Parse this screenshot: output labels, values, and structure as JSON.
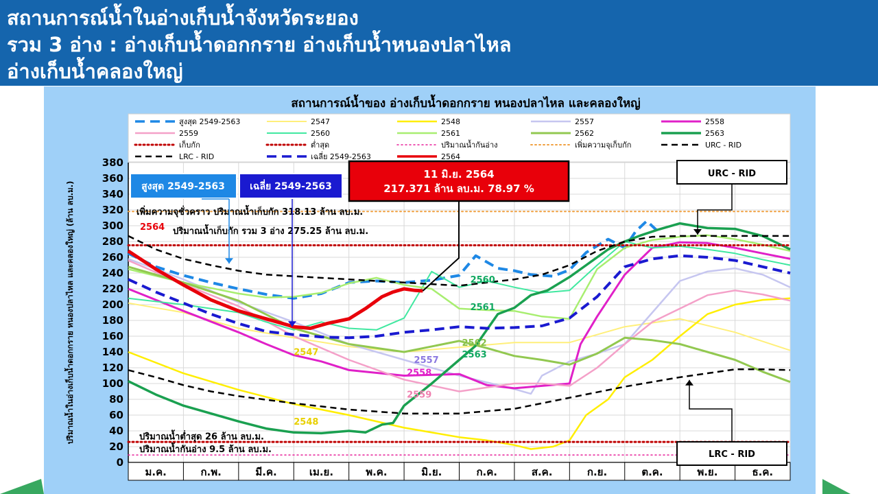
{
  "slide": {
    "title_line1": "สถานการณ์น้ำในอ่างเก็บน้ำจังหวัดระยอง",
    "title_line2": "รวม 3 อ่าง : อ่างเก็บน้ำดอกกราย อ่างเก็บน้ำหนองปลาไหล",
    "title_line3": "อ่างเก็บน้ำคลองใหญ่"
  },
  "colors": {
    "header_bg": "#1565ad",
    "panel_bg": "#9fd0f8",
    "plot_bg": "#ffffff",
    "accent_red": "#e8000a",
    "callout_blue": "#1e88e5",
    "callout_navy": "#1a1ad0"
  },
  "chart_data": {
    "type": "line",
    "title": "สถานการณ์น้ำของ อ่างเก็บน้ำดอกกราย หนองปลาไหล และคลองใหญ่",
    "ylabel": "ปริมาณน้ำในอ่างเก็บน้ำดอกกราย หนองปลาไหล และคลองใหญ่ (ล้าน ลบ.ม.)",
    "xlabel": "",
    "ylim": [
      0,
      380
    ],
    "yticks": [
      0,
      20,
      40,
      60,
      80,
      100,
      120,
      140,
      160,
      180,
      200,
      220,
      240,
      260,
      280,
      300,
      320,
      340,
      360,
      380
    ],
    "months": [
      "ม.ค.",
      "ก.พ.",
      "มี.ค.",
      "เม.ย.",
      "พ.ค.",
      "มิ.ย.",
      "ก.ค.",
      "ส.ค.",
      "ก.ย.",
      "ต.ค.",
      "พ.ย.",
      "ธ.ค."
    ],
    "grid": true,
    "legend_position": "top",
    "series": [
      {
        "name": "สูงสุด 2549-2563",
        "color": "#1e88e5",
        "dash": "long",
        "width": 4,
        "x": [
          0,
          0.5,
          1,
          1.5,
          2,
          2.5,
          3,
          3.5,
          4,
          4.5,
          5,
          5.5,
          6,
          6.3,
          6.7,
          7,
          7.3,
          7.7,
          8,
          8.3,
          8.7,
          9,
          9.2,
          9.4,
          9.6
        ],
        "y": [
          265,
          248,
          237,
          228,
          220,
          213,
          208,
          214,
          228,
          230,
          228,
          231,
          237,
          262,
          246,
          243,
          238,
          236,
          244,
          266,
          283,
          272,
          293,
          306,
          293
        ]
      },
      {
        "name": "2547",
        "color": "#ffef7a",
        "dash": "solid",
        "width": 2,
        "x": [
          0,
          1,
          2,
          3,
          4,
          5,
          6,
          7,
          8,
          9,
          10,
          11,
          12
        ],
        "y": [
          202,
          190,
          170,
          158,
          147,
          140,
          146,
          152,
          152,
          172,
          182,
          165,
          142
        ]
      },
      {
        "name": "2548",
        "color": "#ffee00",
        "dash": "solid",
        "width": 2.5,
        "x": [
          0,
          1,
          2,
          3,
          4,
          5,
          6,
          6.5,
          7,
          7.3,
          7.7,
          8,
          8.3,
          8.7,
          9,
          9.5,
          10,
          10.5,
          11,
          11.5,
          12
        ],
        "y": [
          140,
          113,
          92,
          74,
          60,
          44,
          32,
          28,
          22,
          17,
          20,
          28,
          60,
          80,
          108,
          130,
          160,
          188,
          200,
          206,
          208
        ]
      },
      {
        "name": "2557",
        "color": "#c6c6f0",
        "dash": "solid",
        "width": 2.5,
        "x": [
          0,
          1,
          2,
          3,
          4,
          5,
          6,
          7,
          7.3,
          7.5,
          8,
          8.5,
          9,
          9.5,
          10,
          10.5,
          11,
          11.5,
          12
        ],
        "y": [
          258,
          232,
          203,
          178,
          150,
          130,
          110,
          93,
          87,
          110,
          128,
          138,
          150,
          190,
          230,
          242,
          246,
          238,
          222
        ]
      },
      {
        "name": "2558",
        "color": "#e020c8",
        "dash": "solid",
        "width": 3,
        "x": [
          0,
          1,
          2,
          2.5,
          3,
          3.5,
          4,
          5,
          6,
          6.5,
          7,
          7.5,
          8,
          8.2,
          8.5,
          9,
          9.5,
          10,
          10.5,
          11,
          11.5,
          12
        ],
        "y": [
          220,
          192,
          165,
          150,
          136,
          128,
          117,
          110,
          112,
          98,
          94,
          97,
          100,
          150,
          185,
          238,
          272,
          279,
          278,
          272,
          265,
          258
        ]
      },
      {
        "name": "2559",
        "color": "#f4a0c8",
        "dash": "solid",
        "width": 2.5,
        "x": [
          0,
          1,
          2,
          3,
          4,
          5,
          6,
          7,
          7.5,
          8,
          8.5,
          9,
          9.5,
          10,
          10.5,
          11,
          11.5,
          12
        ],
        "y": [
          256,
          226,
          198,
          160,
          130,
          105,
          90,
          100,
          100,
          97,
          120,
          150,
          178,
          195,
          212,
          218,
          213,
          205
        ]
      },
      {
        "name": "2560",
        "color": "#40e8a0",
        "dash": "solid",
        "width": 2,
        "x": [
          0,
          1,
          2,
          2.5,
          3,
          3.5,
          4,
          4.5,
          5,
          5.5,
          6,
          6.5,
          7,
          7.5,
          8,
          8.5,
          9,
          9.5,
          10,
          10.5,
          11,
          11.5,
          12
        ],
        "y": [
          208,
          200,
          190,
          178,
          168,
          178,
          170,
          168,
          183,
          242,
          222,
          230,
          222,
          215,
          218,
          250,
          280,
          272,
          274,
          270,
          265,
          257,
          250
        ]
      },
      {
        "name": "2561",
        "color": "#a8ee70",
        "dash": "solid",
        "width": 2.5,
        "x": [
          0,
          1,
          2,
          2.5,
          3,
          3.5,
          4,
          4.5,
          5,
          5.5,
          6,
          6.5,
          7,
          7.5,
          8,
          8.5,
          9,
          9.5,
          10,
          10.5,
          11,
          11.5,
          12
        ],
        "y": [
          245,
          228,
          214,
          209,
          210,
          215,
          227,
          234,
          225,
          220,
          195,
          193,
          192,
          185,
          182,
          245,
          272,
          282,
          286,
          288,
          283,
          276,
          268
        ]
      },
      {
        "name": "2562",
        "color": "#92c850",
        "dash": "solid",
        "width": 3,
        "x": [
          0,
          1,
          2,
          3,
          4,
          5,
          6,
          6.5,
          7,
          7.5,
          8,
          8.5,
          9,
          9.5,
          10,
          10.5,
          11,
          11.5,
          12
        ],
        "y": [
          248,
          228,
          205,
          170,
          150,
          140,
          154,
          145,
          135,
          130,
          124,
          138,
          158,
          155,
          150,
          140,
          130,
          115,
          102
        ]
      },
      {
        "name": "2563",
        "color": "#1aa050",
        "dash": "solid",
        "width": 3.5,
        "x": [
          0,
          0.5,
          1,
          1.5,
          2,
          2.5,
          3,
          3.5,
          4,
          4.3,
          4.6,
          4.8,
          5,
          5.5,
          6,
          6.3,
          6.7,
          7,
          7.3,
          7.6,
          8,
          8.3,
          8.7,
          9,
          9.3,
          9.6,
          10,
          10.5,
          11,
          11.5,
          12
        ],
        "y": [
          103,
          86,
          72,
          62,
          52,
          43,
          38,
          37,
          40,
          38,
          48,
          50,
          72,
          100,
          130,
          148,
          188,
          196,
          212,
          218,
          235,
          250,
          270,
          280,
          288,
          295,
          303,
          297,
          296,
          287,
          270
        ]
      },
      {
        "name": "เก็บกัก",
        "color": "#c00000",
        "dash": "dot",
        "width": 3,
        "x": [
          0,
          12
        ],
        "y": [
          275.25,
          275.25
        ]
      },
      {
        "name": "ต่ำสุด",
        "color": "#c00000",
        "dash": "dot",
        "width": 3,
        "x": [
          0,
          12
        ],
        "y": [
          26,
          26
        ]
      },
      {
        "name": "ปริมาณน้ำกันอ่าง",
        "color": "#e8209a",
        "dash": "dot",
        "width": 1.5,
        "x": [
          0,
          12
        ],
        "y": [
          9.5,
          9.5
        ]
      },
      {
        "name": "เพิ่มความจุเก็บกัก",
        "color": "#f0a040",
        "dash": "dot",
        "width": 2,
        "x": [
          0,
          12
        ],
        "y": [
          318.13,
          318.13
        ]
      },
      {
        "name": "URC - RID",
        "color": "#000000",
        "dash": "dash",
        "width": 2.5,
        "x": [
          0,
          0.5,
          1,
          1.5,
          2,
          2.5,
          3,
          4,
          5,
          6,
          7,
          7.5,
          8,
          8.5,
          9,
          9.5,
          10,
          11,
          12
        ],
        "y": [
          287,
          270,
          258,
          250,
          243,
          238,
          236,
          232,
          228,
          224,
          232,
          238,
          250,
          268,
          280,
          286,
          287,
          287,
          287
        ]
      },
      {
        "name": "LRC - RID",
        "color": "#000000",
        "dash": "dash",
        "width": 2.5,
        "x": [
          0,
          0.5,
          1,
          1.5,
          2,
          3,
          4,
          5,
          6,
          7,
          8,
          9,
          10,
          11,
          11.5,
          12
        ],
        "y": [
          117,
          108,
          98,
          90,
          84,
          75,
          67,
          62,
          62,
          68,
          82,
          96,
          108,
          118,
          118,
          117
        ]
      },
      {
        "name": "เฉลี่ย 2549-2563",
        "color": "#1a1ad0",
        "dash": "long",
        "width": 4,
        "x": [
          0,
          0.5,
          1,
          1.5,
          2,
          2.5,
          3,
          3.5,
          4,
          4.5,
          5,
          5.5,
          6,
          6.5,
          7,
          7.5,
          8,
          8.5,
          9,
          9.5,
          10,
          10.5,
          11,
          11.5,
          12
        ],
        "y": [
          232,
          216,
          202,
          188,
          176,
          166,
          162,
          159,
          158,
          160,
          165,
          168,
          172,
          170,
          171,
          173,
          183,
          210,
          248,
          258,
          262,
          260,
          256,
          248,
          240
        ]
      },
      {
        "name": "2564",
        "color": "#e8000a",
        "dash": "solid",
        "width": 5,
        "x": [
          0,
          0.5,
          1,
          1.5,
          2,
          2.5,
          3,
          3.3,
          3.6,
          4,
          4.3,
          4.6,
          4.8,
          5,
          5.2,
          5.34
        ],
        "y": [
          268,
          245,
          225,
          206,
          192,
          182,
          172,
          170,
          176,
          182,
          195,
          210,
          216,
          220,
          218,
          217.371
        ]
      }
    ],
    "callouts": {
      "latest_date": "11 มิ.ย. 2564",
      "latest_value": "217.371 ล้าน ลบ.ม. 78.97 %",
      "max_box": "สูงสุด 2549-2563",
      "avg_box": "เฉลี่ย 2549-2563",
      "urc_box": "URC - RID",
      "lrc_box": "LRC - RID"
    },
    "annotations": {
      "added_capacity": "เพิ่มความจุชั่วคราว  ปริมาณน้ำเก็บกัก  318.13  ล้าน  ลบ.ม.",
      "year_2564": "2564",
      "storage_total": "ปริมาณน้ำเก็บกัก  รวม  3  อ่าง  275.25  ล้าน  ลบ.ม.",
      "min_level": "ปริมาณน้ำต่ำสุด  26  ล้าน  ลบ.ม.",
      "dead_storage": "ปริมาณน้ำกันอ่าง  9.5  ล้าน  ลบ.ม."
    },
    "series_labels": [
      {
        "text": "2560",
        "x": 6.2,
        "y": 228,
        "color": "#10a860"
      },
      {
        "text": "2561",
        "x": 6.2,
        "y": 193,
        "color": "#10a860"
      },
      {
        "text": "2562",
        "x": 6.05,
        "y": 148,
        "color": "#88c048"
      },
      {
        "text": "2563",
        "x": 6.05,
        "y": 133,
        "color": "#10a860"
      },
      {
        "text": "2557",
        "x": 5.18,
        "y": 126,
        "color": "#8a78e0"
      },
      {
        "text": "2558",
        "x": 5.05,
        "y": 110,
        "color": "#e020c8"
      },
      {
        "text": "2559",
        "x": 5.05,
        "y": 82,
        "color": "#f080b0"
      },
      {
        "text": "2547",
        "x": 3.0,
        "y": 136,
        "color": "#e8d000"
      },
      {
        "text": "2548",
        "x": 3.0,
        "y": 48,
        "color": "#e8d000"
      }
    ]
  }
}
